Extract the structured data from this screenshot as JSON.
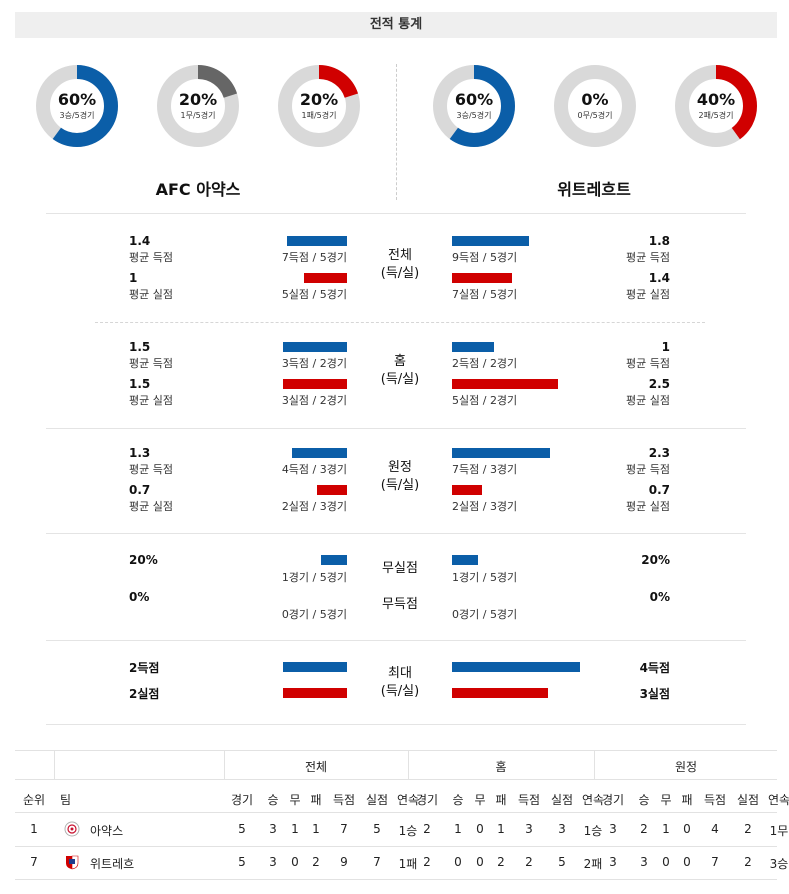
{
  "header": {
    "title": "전적 통계"
  },
  "donuts": [
    {
      "pct": "60%",
      "sub": "3승/5경기",
      "value": 60,
      "color": "#0b5ea8"
    },
    {
      "pct": "20%",
      "sub": "1무/5경기",
      "value": 20,
      "color": "#666666"
    },
    {
      "pct": "20%",
      "sub": "1패/5경기",
      "value": 20,
      "color": "#d00000"
    },
    {
      "pct": "60%",
      "sub": "3승/5경기",
      "value": 60,
      "color": "#0b5ea8"
    },
    {
      "pct": "0%",
      "sub": "0무/5경기",
      "value": 0,
      "color": "#666666"
    },
    {
      "pct": "40%",
      "sub": "2패/5경기",
      "value": 40,
      "color": "#d00000"
    }
  ],
  "teams": {
    "home": "AFC 아약스",
    "away": "위트레흐트"
  },
  "sections": {
    "total": {
      "label1": "전체",
      "label2": "(득/실)",
      "home_scored": "1.4",
      "home_scored_lbl": "평균 득점",
      "home_scored_cap": "7득점 / 5경기",
      "home_scored_ratio": 0.375,
      "home_conceded": "1",
      "home_conceded_lbl": "평균 실점",
      "home_conceded_cap": "5실점 / 5경기",
      "home_conceded_ratio": 0.27,
      "away_scored": "1.8",
      "away_scored_lbl": "평균 득점",
      "away_scored_cap": "9득점 / 5경기",
      "away_scored_ratio": 0.48,
      "away_conceded": "1.4",
      "away_conceded_lbl": "평균 실점",
      "away_conceded_cap": "7실점 / 5경기",
      "away_conceded_ratio": 0.375
    },
    "home": {
      "label1": "홈",
      "label2": "(득/실)",
      "home_scored": "1.5",
      "home_scored_lbl": "평균 득점",
      "home_scored_cap": "3득점 / 2경기",
      "home_scored_ratio": 0.4,
      "home_conceded": "1.5",
      "home_conceded_lbl": "평균 실점",
      "home_conceded_cap": "3실점 / 2경기",
      "home_conceded_ratio": 0.4,
      "away_scored": "1",
      "away_scored_lbl": "평균 득점",
      "away_scored_cap": "2득점 / 2경기",
      "away_scored_ratio": 0.265,
      "away_conceded": "2.5",
      "away_conceded_lbl": "평균 실점",
      "away_conceded_cap": "5실점 / 2경기",
      "away_conceded_ratio": 0.665
    },
    "away": {
      "label1": "원정",
      "label2": "(득/실)",
      "home_scored": "1.3",
      "home_scored_lbl": "평균 득점",
      "home_scored_cap": "4득점 / 3경기",
      "home_scored_ratio": 0.345,
      "home_conceded": "0.7",
      "home_conceded_lbl": "평균 실점",
      "home_conceded_cap": "2실점 / 3경기",
      "home_conceded_ratio": 0.185,
      "away_scored": "2.3",
      "away_scored_lbl": "평균 득점",
      "away_scored_cap": "7득점 / 3경기",
      "away_scored_ratio": 0.615,
      "away_conceded": "0.7",
      "away_conceded_lbl": "평균 실점",
      "away_conceded_cap": "2실점 / 3경기",
      "away_conceded_ratio": 0.185
    },
    "clean": {
      "label_clean": "무실점",
      "label_noscore": "무득점",
      "home_clean": "20%",
      "home_clean_cap": "1경기 / 5경기",
      "home_clean_ratio": 0.16,
      "home_noscore": "0%",
      "home_noscore_cap": "0경기 / 5경기",
      "away_clean": "20%",
      "away_clean_cap": "1경기 / 5경기",
      "away_clean_ratio": 0.16,
      "away_noscore": "0%",
      "away_noscore_cap": "0경기 / 5경기"
    },
    "max": {
      "label1": "최대",
      "label2": "(득/실)",
      "home_scored": "2득점",
      "home_scored_ratio": 0.4,
      "home_conceded": "2실점",
      "home_conceded_ratio": 0.4,
      "away_scored": "4득점",
      "away_scored_ratio": 0.8,
      "away_conceded": "3실점",
      "away_conceded_ratio": 0.6
    }
  },
  "table": {
    "groups": [
      "전체",
      "홈",
      "원정"
    ],
    "rank_header": "순위",
    "team_header": "팀",
    "columns": [
      "경기",
      "승",
      "무",
      "패",
      "득점",
      "실점",
      "연속"
    ],
    "rows": [
      {
        "rank": "1",
        "team": "아약스",
        "logo": "ajax-logo-icon",
        "total": [
          "5",
          "3",
          "1",
          "1",
          "7",
          "5",
          "1승"
        ],
        "home": [
          "2",
          "1",
          "0",
          "1",
          "3",
          "3",
          "1승"
        ],
        "away": [
          "3",
          "2",
          "1",
          "0",
          "4",
          "2",
          "1무"
        ]
      },
      {
        "rank": "7",
        "team": "위트레흐",
        "logo": "utrecht-logo-icon",
        "total": [
          "5",
          "3",
          "0",
          "2",
          "9",
          "7",
          "1패"
        ],
        "home": [
          "2",
          "0",
          "0",
          "2",
          "2",
          "5",
          "2패"
        ],
        "away": [
          "3",
          "3",
          "0",
          "0",
          "7",
          "2",
          "3승"
        ]
      }
    ]
  }
}
